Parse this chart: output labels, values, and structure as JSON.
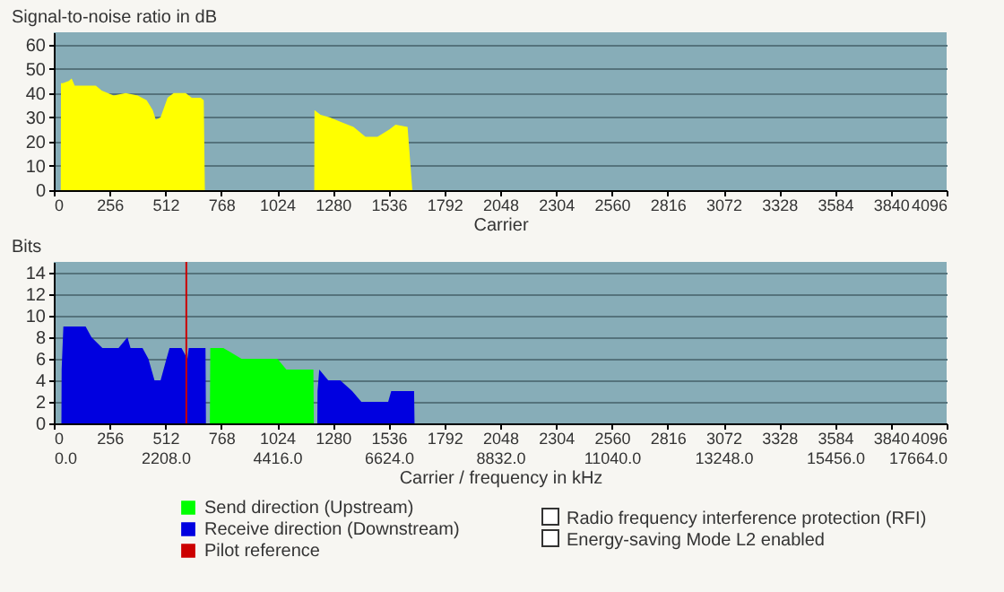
{
  "chart_data": [
    {
      "type": "area",
      "xlabel": "Carrier",
      "ylabel": "Signal-to-noise ratio in dB",
      "xlim": [
        0,
        4096
      ],
      "xticks": [
        0,
        256,
        512,
        768,
        1024,
        1280,
        1536,
        1792,
        2048,
        2304,
        2560,
        2816,
        3072,
        3328,
        3584,
        3840,
        4096
      ],
      "ylim": [
        0,
        65
      ],
      "yticks": [
        0,
        10,
        20,
        30,
        40,
        50,
        60
      ],
      "grid": "y",
      "series": [
        {
          "color": "#ffff00",
          "x": [
            32,
            33,
            41,
            69,
            82,
            96,
            193,
            220,
            275,
            330,
            385,
            426,
            454,
            468,
            490,
            522,
            550,
            605,
            633,
            674,
            688,
            693,
            1195,
            1196,
            1224,
            1265,
            1320,
            1375,
            1430,
            1485,
            1540,
            1568,
            1623,
            1645
          ],
          "values": [
            0,
            44,
            44,
            45,
            46,
            43,
            43,
            41,
            39,
            40,
            39,
            37,
            33,
            29,
            30,
            38,
            40,
            40,
            38,
            38,
            37,
            0,
            0,
            33,
            31,
            30,
            28,
            26,
            22,
            22,
            25,
            27,
            26,
            0
          ]
        }
      ]
    },
    {
      "type": "area",
      "xlabel": "Carrier / frequency in kHz",
      "ylabel": "Bits",
      "xlim": [
        0,
        4096
      ],
      "xticks": [
        0,
        256,
        512,
        768,
        1024,
        1280,
        1536,
        1792,
        2048,
        2304,
        2560,
        2816,
        3072,
        3328,
        3584,
        3840,
        4096
      ],
      "x2lim": [
        0,
        17664
      ],
      "x2ticks": [
        {
          "value": 0,
          "label": "0.0"
        },
        {
          "value": 2208,
          "label": "2208.0"
        },
        {
          "value": 4416,
          "label": "4416.0"
        },
        {
          "value": 6624,
          "label": "6624.0"
        },
        {
          "value": 8832,
          "label": "8832.0"
        },
        {
          "value": 11040,
          "label": "11040.0"
        },
        {
          "value": 13248,
          "label": "13248.0"
        },
        {
          "value": 15456,
          "label": "15456.0"
        },
        {
          "value": 17664,
          "label": "17664.0"
        }
      ],
      "ylim": [
        0,
        15
      ],
      "yticks": [
        0,
        2,
        4,
        6,
        8,
        10,
        12,
        14
      ],
      "grid": "y",
      "legend": "bottom",
      "series": [
        {
          "name": "Send direction (Upstream)",
          "color": "#00ff00",
          "x": [
            716,
            718,
            778,
            861,
            971,
            1026,
            1067,
            1191,
            1193
          ],
          "values": [
            0,
            7,
            7,
            6,
            6,
            6,
            5,
            5,
            0
          ]
        },
        {
          "name": "Receive direction (Downstream)",
          "color": "#0000e0",
          "x": [
            35,
            36,
            44,
            118,
            146,
            173,
            223,
            297,
            338,
            352,
            407,
            434,
            462,
            490,
            517,
            531,
            586,
            613,
            619,
            696,
            698,
            1209,
            1210,
            1218,
            1259,
            1314,
            1369,
            1411,
            1534,
            1548,
            1653,
            1655
          ],
          "values": [
            0,
            5,
            9,
            9,
            9,
            8,
            7,
            7,
            8,
            7,
            7,
            6,
            4,
            4,
            6,
            7,
            7,
            6,
            7,
            7,
            0,
            0,
            3,
            5,
            4,
            4,
            3,
            2,
            2,
            3,
            3,
            0
          ]
        }
      ],
      "ref_lines": [
        {
          "axis": "x",
          "value": 608,
          "label": "Pilot reference",
          "color": "#cc0000"
        }
      ],
      "annotations": [
        "Radio frequency interference protection (RFI)",
        "Energy-saving Mode L2 enabled"
      ]
    }
  ]
}
